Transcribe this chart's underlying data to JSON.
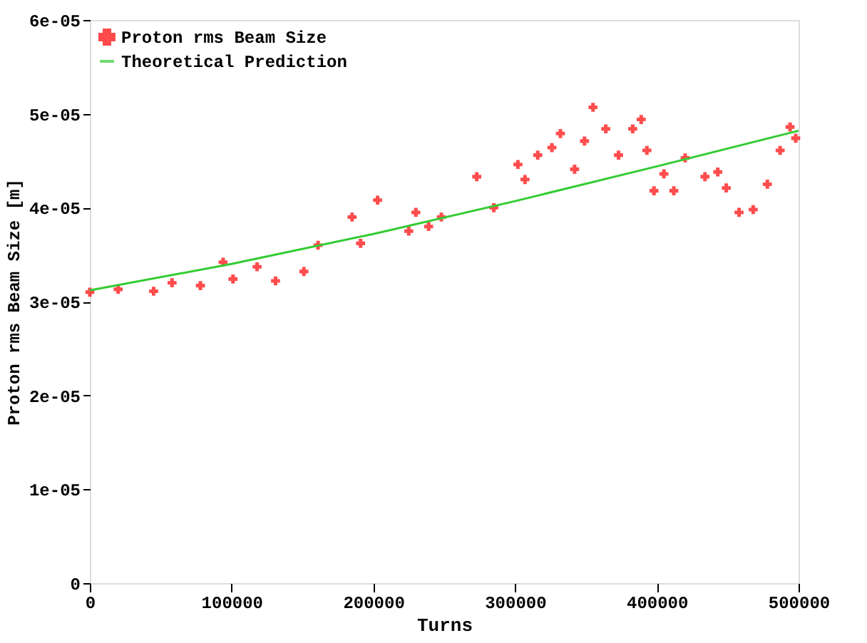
{
  "chart_data": {
    "type": "scatter",
    "xlabel": "Turns",
    "ylabel": "Proton rms Beam Size [m]",
    "xlim": [
      0,
      500000
    ],
    "xticks": [
      0,
      100000,
      200000,
      300000,
      400000,
      500000
    ],
    "ylim": [
      0,
      6e-05
    ],
    "yticks": [
      {
        "value": 0,
        "label": "0"
      },
      {
        "value": 1e-05,
        "label": "1e-05"
      },
      {
        "value": 2e-05,
        "label": "2e-05"
      },
      {
        "value": 3e-05,
        "label": "3e-05"
      },
      {
        "value": 4e-05,
        "label": "4e-05"
      },
      {
        "value": 5e-05,
        "label": "5e-05"
      },
      {
        "value": 6e-05,
        "label": "6e-05"
      }
    ],
    "grid": false,
    "legend": "top left",
    "series": [
      {
        "name": "Proton rms Beam Size",
        "marker": "cross",
        "color": "#ff0000",
        "x": [
          0,
          20000,
          45000,
          58000,
          78000,
          94000,
          101000,
          118000,
          131000,
          151000,
          161000,
          185000,
          191000,
          203000,
          225000,
          230000,
          239000,
          248000,
          273000,
          285000,
          302000,
          307000,
          316000,
          326000,
          332000,
          342000,
          349000,
          355000,
          364000,
          373000,
          383000,
          389000,
          393000,
          398000,
          405000,
          412000,
          420000,
          434000,
          443000,
          449000,
          458000,
          468000,
          478000,
          487000,
          494000,
          498000
        ],
        "values": [
          3.1e-05,
          3.13e-05,
          3.11e-05,
          3.2e-05,
          3.17e-05,
          3.42e-05,
          3.24e-05,
          3.37e-05,
          3.22e-05,
          3.32e-05,
          3.6e-05,
          3.9e-05,
          3.62e-05,
          4.08e-05,
          3.75e-05,
          3.95e-05,
          3.8e-05,
          3.9e-05,
          4.33e-05,
          4e-05,
          4.46e-05,
          4.3e-05,
          4.56e-05,
          4.64e-05,
          4.79e-05,
          4.41e-05,
          4.71e-05,
          5.07e-05,
          4.84e-05,
          4.56e-05,
          4.84e-05,
          4.94e-05,
          4.61e-05,
          4.18e-05,
          4.36e-05,
          4.18e-05,
          4.53e-05,
          4.33e-05,
          4.38e-05,
          4.21e-05,
          3.95e-05,
          3.98e-05,
          4.25e-05,
          4.61e-05,
          4.86e-05,
          4.74e-05
        ]
      },
      {
        "name": "Theoretical Prediction",
        "type": "line",
        "line_style": "solid",
        "color": "#33cc33",
        "x": [
          0,
          100000,
          200000,
          300000,
          400000,
          500000
        ],
        "values": [
          3.12e-05,
          3.4e-05,
          3.72e-05,
          4.07e-05,
          4.44e-05,
          4.82e-05
        ]
      }
    ]
  }
}
